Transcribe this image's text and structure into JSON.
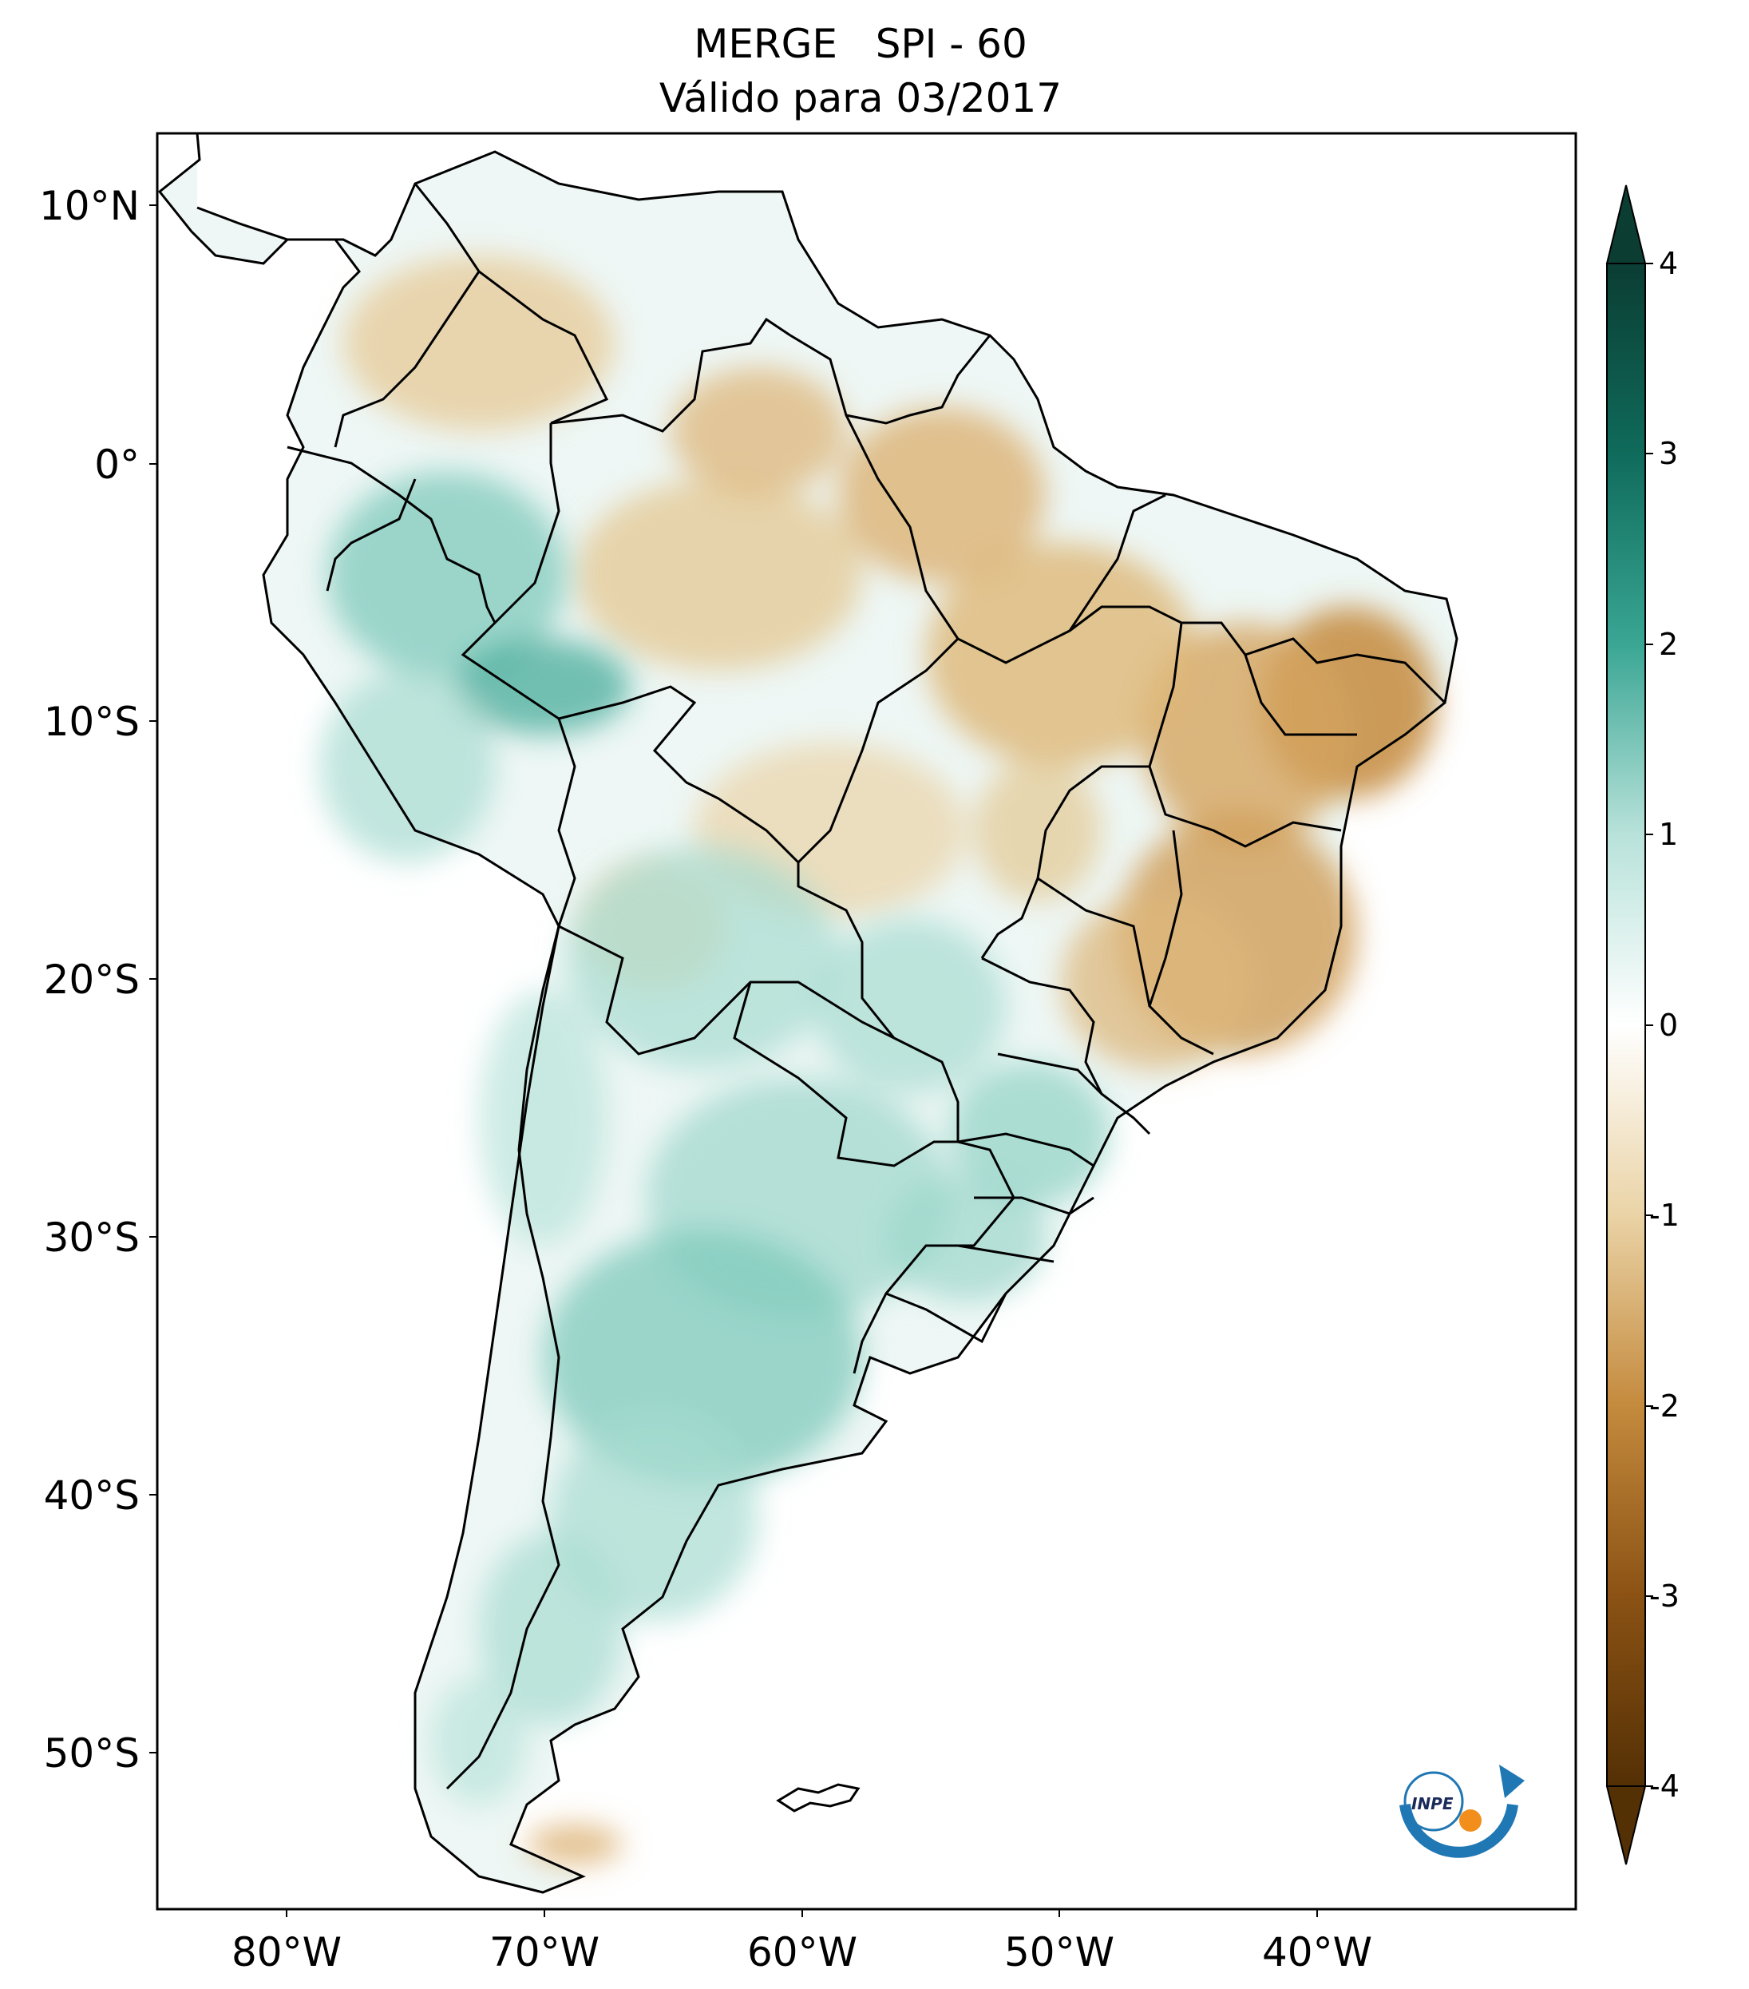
{
  "title": {
    "line1": "MERGE   SPI - 60",
    "line2": "Válido para 03/2017"
  },
  "map": {
    "lon_range": [
      -85,
      -30
    ],
    "lat_range": [
      -56,
      13
    ],
    "lat_ticks": [
      "10°N",
      "0°",
      "10°S",
      "20°S",
      "30°S",
      "40°S",
      "50°S"
    ],
    "lon_ticks": [
      "80°W",
      "70°W",
      "60°W",
      "50°W",
      "40°W"
    ]
  },
  "colorbar": {
    "ticks": [
      "4",
      "3",
      "2",
      "1",
      "0",
      "-1",
      "-2",
      "-3",
      "-4"
    ],
    "range": [
      -4,
      4
    ],
    "extend": "both",
    "colors": {
      "max": "#0b3d33",
      "mid_high": "#3aa694",
      "low_high": "#b8e2da",
      "zero": "#ffffff",
      "low_dry": "#ead3a6",
      "mid_dry": "#c48a3d",
      "min": "#543005"
    }
  },
  "logo": {
    "text": "INPE",
    "icon": "inpe-logo"
  },
  "palette": {
    "wet": "#80cdc1",
    "wet_strong": "#35978f",
    "dry": "#dfc27d",
    "dry_strong": "#bf812d",
    "neutral": "#f5f5f5",
    "border": "#000000"
  }
}
